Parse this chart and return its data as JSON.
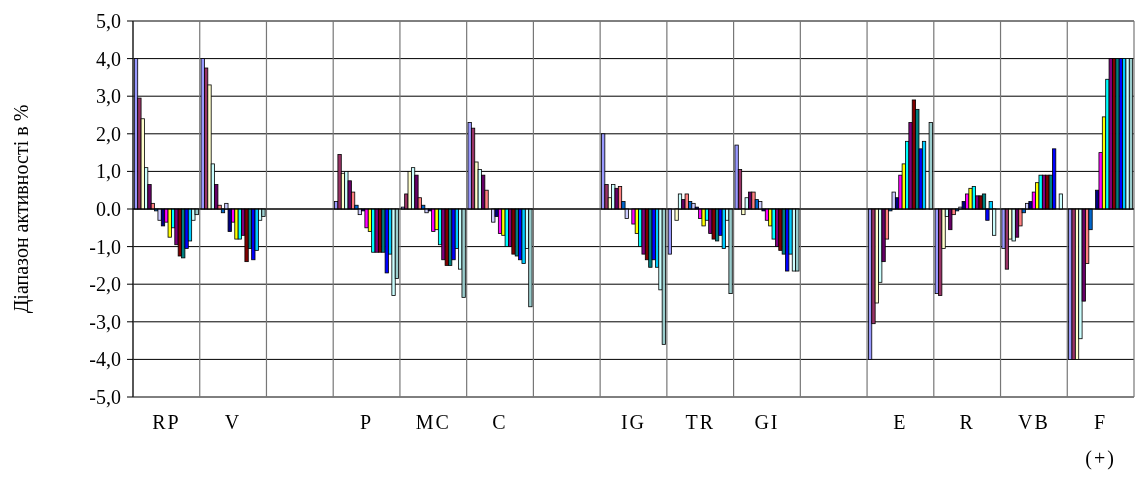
{
  "chart_data": {
    "type": "bar",
    "ylabel": "Діапазон активності в %",
    "categories": [
      "RP",
      "V",
      null,
      "P",
      "MC",
      "C",
      null,
      "IG",
      "TR",
      "GI",
      null,
      "E",
      "R",
      "VB",
      "F\n(+)"
    ],
    "ylim": [
      -5,
      5
    ],
    "yticks": [
      {
        "value": 5,
        "label": "5,0"
      },
      {
        "value": 4,
        "label": "4,0"
      },
      {
        "value": 3,
        "label": "3,0"
      },
      {
        "value": 2,
        "label": "2,0"
      },
      {
        "value": 1,
        "label": "1,0"
      },
      {
        "value": 0,
        "label": "0.0"
      },
      {
        "value": -1,
        "label": "-1,0"
      },
      {
        "value": -2,
        "label": "-2,0"
      },
      {
        "value": -3,
        "label": "-3,0"
      },
      {
        "value": -4,
        "label": "-4,0"
      },
      {
        "value": -5,
        "label": "-5,0"
      }
    ],
    "grid": true,
    "series": [
      {
        "color": "#9999ff",
        "values": [
          4.0,
          4.0,
          null,
          0.2,
          0.05,
          2.3,
          null,
          2.0,
          -1.2,
          1.7,
          null,
          -4.0,
          -2.25,
          -1.05,
          -4.0
        ]
      },
      {
        "color": "#993366",
        "values": [
          2.95,
          3.75,
          null,
          1.45,
          0.4,
          2.15,
          null,
          0.65,
          0.0,
          1.05,
          null,
          -3.05,
          -2.3,
          -1.6,
          -4.0
        ]
      },
      {
        "color": "#ffffcc",
        "values": [
          2.4,
          3.3,
          null,
          0.95,
          1.0,
          1.25,
          null,
          0.3,
          -0.3,
          -0.15,
          null,
          -2.5,
          -1.05,
          -0.8,
          -4.0
        ]
      },
      {
        "color": "#ccffff",
        "values": [
          1.1,
          1.2,
          null,
          1.0,
          1.1,
          1.05,
          null,
          0.65,
          0.4,
          0.3,
          null,
          -1.95,
          -0.2,
          -0.85,
          -3.45
        ]
      },
      {
        "color": "#660066",
        "values": [
          0.65,
          0.65,
          null,
          0.75,
          0.9,
          0.9,
          null,
          0.55,
          0.25,
          0.45,
          null,
          -1.4,
          -0.55,
          -0.75,
          -2.45
        ]
      },
      {
        "color": "#ff8080",
        "values": [
          0.15,
          0.1,
          null,
          0.45,
          0.3,
          0.5,
          null,
          0.6,
          0.4,
          0.45,
          null,
          -0.8,
          -0.15,
          -0.45,
          -1.45
        ]
      },
      {
        "color": "#0066cc",
        "values": [
          -0.05,
          -0.1,
          null,
          0.1,
          0.1,
          0.0,
          null,
          0.2,
          0.2,
          0.25,
          null,
          -0.05,
          -0.05,
          -0.1,
          -0.55
        ]
      },
      {
        "color": "#ccccff",
        "values": [
          -0.3,
          0.15,
          null,
          -0.15,
          -0.1,
          -0.35,
          null,
          -0.25,
          0.15,
          0.2,
          null,
          0.45,
          0.05,
          0.15,
          0.0
        ]
      },
      {
        "color": "#000080",
        "values": [
          -0.45,
          -0.6,
          null,
          -0.05,
          -0.05,
          -0.2,
          null,
          0.0,
          0.05,
          -0.05,
          null,
          0.3,
          0.2,
          0.2,
          0.5
        ]
      },
      {
        "color": "#ff00ff",
        "values": [
          -0.35,
          -0.35,
          null,
          -0.5,
          -0.6,
          -0.65,
          null,
          -0.4,
          -0.25,
          -0.3,
          null,
          0.9,
          0.4,
          0.45,
          1.5
        ]
      },
      {
        "color": "#ffff00",
        "values": [
          -0.75,
          -0.8,
          null,
          -0.6,
          -0.55,
          -0.7,
          null,
          -0.65,
          -0.45,
          -0.45,
          null,
          1.2,
          0.55,
          0.7,
          2.45
        ]
      },
      {
        "color": "#00ffff",
        "values": [
          -0.5,
          -0.8,
          null,
          -1.15,
          -0.95,
          -1.0,
          null,
          -1.0,
          -0.3,
          -0.8,
          null,
          1.8,
          0.6,
          0.9,
          3.45
        ]
      },
      {
        "color": "#800080",
        "values": [
          -0.95,
          -0.7,
          null,
          -1.15,
          -1.35,
          -1.0,
          null,
          -1.2,
          -0.65,
          -1.0,
          null,
          2.3,
          0.35,
          0.9,
          4.0
        ]
      },
      {
        "color": "#800000",
        "values": [
          -1.25,
          -1.4,
          null,
          -1.15,
          -1.5,
          -1.2,
          null,
          -1.35,
          -0.8,
          -1.1,
          null,
          2.9,
          0.35,
          0.9,
          4.0
        ]
      },
      {
        "color": "#008080",
        "values": [
          -1.3,
          -1.05,
          null,
          -1.15,
          -1.5,
          -1.25,
          null,
          -1.55,
          -0.85,
          -1.2,
          null,
          2.65,
          0.4,
          0.9,
          4.0
        ]
      },
      {
        "color": "#0000ff",
        "values": [
          -1.05,
          -1.35,
          null,
          -1.7,
          -1.35,
          -1.35,
          null,
          -1.35,
          -0.7,
          -1.65,
          null,
          1.6,
          -0.3,
          1.6,
          4.0
        ]
      },
      {
        "color": "#00ccff",
        "values": [
          -0.85,
          -1.1,
          null,
          -1.2,
          -1.05,
          -1.45,
          null,
          -1.55,
          -1.05,
          -1.2,
          null,
          1.8,
          0.2,
          0.0,
          4.0
        ]
      },
      {
        "color": "#ccffff",
        "values": [
          -0.3,
          -0.3,
          null,
          -2.3,
          -1.6,
          -1.05,
          null,
          -2.15,
          -0.3,
          -1.65,
          null,
          null,
          -0.7,
          0.4,
          4.0
        ]
      },
      {
        "color": "#99cccc",
        "values": [
          -0.15,
          -0.2,
          null,
          -1.85,
          -2.35,
          -2.6,
          null,
          -3.6,
          -2.25,
          -1.65,
          null,
          2.3,
          null,
          null,
          4.0
        ]
      }
    ]
  }
}
